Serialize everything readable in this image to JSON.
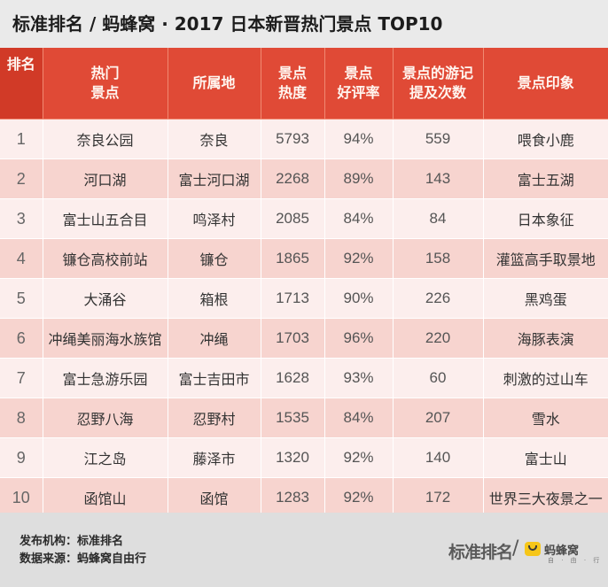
{
  "header": {
    "title": "标准排名 / 蚂蜂窝 · 2017 日本新晋热门景点 TOP10"
  },
  "table": {
    "columns": [
      [
        "排名"
      ],
      [
        "热门",
        "景点"
      ],
      [
        "所属地"
      ],
      [
        "景点",
        "热度"
      ],
      [
        "景点",
        "好评率"
      ],
      [
        "景点的游记",
        "提及次数"
      ],
      [
        "景点印象"
      ]
    ],
    "rows": [
      {
        "rank": "1",
        "name": "奈良公园",
        "location": "奈良",
        "heat": "5793",
        "rating": "94%",
        "mentions": "559",
        "impression": "喂食小鹿"
      },
      {
        "rank": "2",
        "name": "河口湖",
        "location": "富士河口湖",
        "heat": "2268",
        "rating": "89%",
        "mentions": "143",
        "impression": "富士五湖"
      },
      {
        "rank": "3",
        "name": "富士山五合目",
        "location": "鸣泽村",
        "heat": "2085",
        "rating": "84%",
        "mentions": "84",
        "impression": "日本象征"
      },
      {
        "rank": "4",
        "name": "镰仓高校前站",
        "location": "镰仓",
        "heat": "1865",
        "rating": "92%",
        "mentions": "158",
        "impression": "灌篮高手取景地"
      },
      {
        "rank": "5",
        "name": "大涌谷",
        "location": "箱根",
        "heat": "1713",
        "rating": "90%",
        "mentions": "226",
        "impression": "黑鸡蛋"
      },
      {
        "rank": "6",
        "name": "冲绳美丽海水族馆",
        "location": "冲绳",
        "heat": "1703",
        "rating": "96%",
        "mentions": "220",
        "impression": "海豚表演"
      },
      {
        "rank": "7",
        "name": "富士急游乐园",
        "location": "富士吉田市",
        "heat": "1628",
        "rating": "93%",
        "mentions": "60",
        "impression": "刺激的过山车"
      },
      {
        "rank": "8",
        "name": "忍野八海",
        "location": "忍野村",
        "heat": "1535",
        "rating": "84%",
        "mentions": "207",
        "impression": "雪水"
      },
      {
        "rank": "9",
        "name": "江之岛",
        "location": "藤泽市",
        "heat": "1320",
        "rating": "92%",
        "mentions": "140",
        "impression": "富士山"
      },
      {
        "rank": "10",
        "name": "函馆山",
        "location": "函馆",
        "heat": "1283",
        "rating": "92%",
        "mentions": "172",
        "impression": "世界三大夜景之一"
      }
    ]
  },
  "footer": {
    "publisher": "发布机构：标准排名",
    "source": "数据来源：蚂蜂窝自由行",
    "brand_left": "标准排名",
    "slash": "/",
    "brand_right": "蚂蜂窝",
    "brand_right_sub": "自 · 由 · 行"
  },
  "colors": {
    "header_bg": "#e04a36",
    "row_light": "#fceeed",
    "row_dark": "#f7d4cf",
    "logo_yellow": "#f6c619"
  }
}
